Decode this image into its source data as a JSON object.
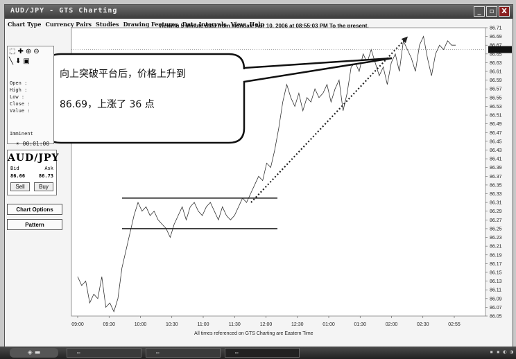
{
  "window": {
    "title": "AUD/JPY - GTS Charting",
    "controls": [
      "_",
      "▫",
      "X"
    ]
  },
  "menu": [
    "Chart Type",
    "Currency Pairs",
    "Studies",
    "Drawing Features",
    "Data Intervals",
    "View",
    "Help"
  ],
  "viewing_text": "Viewing 5 Minute  data from Monday, Apr 10, 2006 at 08:55:03 PM To the present.",
  "tools": {
    "icons": [
      "select-arrow-icon",
      "crosshair-icon",
      "zoom-in-icon",
      "zoom-out-icon",
      "line-icon",
      "arrow-down-icon",
      "box-icon",
      "layers-icon"
    ],
    "ohlc_labels": [
      "Open :",
      "High :",
      "Low  :",
      "Close :",
      "Value :"
    ],
    "imminent_label": "Imminent",
    "timer": "00:01:00"
  },
  "trade": {
    "pair": "AUD/JPY",
    "bid_label": "Bid",
    "ask_label": "Ask",
    "bid": "86.66",
    "ask": "86.73",
    "sell_label": "Sell",
    "buy_label": "Buy"
  },
  "buttons": {
    "chart_options": "Chart Options",
    "pattern": "Pattern"
  },
  "callout": {
    "line1": "向上突破平台后，价格上升到",
    "line2": "86.69，上涨了 36 点"
  },
  "footnote": "All times referenced on GTS Charting are Eastern Time",
  "chart_data": {
    "type": "line",
    "x_ticks": [
      "09:00",
      "09:30",
      "10:00",
      "10:30",
      "11:00",
      "11:30",
      "12:00",
      "12:30",
      "01:00",
      "01:30",
      "02:00",
      "02:30",
      "02:55"
    ],
    "y_ticks": [
      "86.71",
      "86.69",
      "86.67",
      "86.65",
      "86.63",
      "86.61",
      "86.59",
      "86.57",
      "86.55",
      "86.53",
      "86.51",
      "86.49",
      "86.47",
      "86.45",
      "86.43",
      "86.41",
      "86.39",
      "86.37",
      "86.35",
      "86.33",
      "86.31",
      "86.29",
      "86.27",
      "86.25",
      "86.23",
      "86.21",
      "86.19",
      "86.17",
      "86.15",
      "86.13",
      "86.11",
      "86.09",
      "86.07",
      "86.05"
    ],
    "ylim": [
      86.05,
      86.71
    ],
    "last_price": "86.66",
    "series": [
      {
        "values": [
          86.14,
          86.12,
          86.13,
          86.08,
          86.1,
          86.09,
          86.14,
          86.07,
          86.08,
          86.06,
          86.09,
          86.16,
          86.2,
          86.24,
          86.28,
          86.31,
          86.29,
          86.3,
          86.28,
          86.29,
          86.27,
          86.26,
          86.25,
          86.23,
          86.26,
          86.28,
          86.3,
          86.27,
          86.3,
          86.31,
          86.29,
          86.28,
          86.3,
          86.31,
          86.29,
          86.27,
          86.3,
          86.28,
          86.27,
          86.28,
          86.3,
          86.32,
          86.31,
          86.33,
          86.35,
          86.37,
          86.36,
          86.4,
          86.39,
          86.43,
          86.48,
          86.54,
          86.58,
          86.55,
          86.53,
          86.56,
          86.52,
          86.55,
          86.54,
          86.57,
          86.55,
          86.56,
          86.58,
          86.54,
          86.57,
          86.59,
          86.52,
          86.56,
          86.62,
          86.63,
          86.61,
          86.65,
          86.63,
          86.66,
          86.63,
          86.6,
          86.62,
          86.58,
          86.63,
          86.65,
          86.61,
          86.68,
          86.66,
          86.64,
          86.61,
          86.67,
          86.69,
          86.64,
          86.6,
          86.65,
          86.67,
          86.66,
          86.68,
          86.67,
          86.67
        ]
      }
    ],
    "platform": {
      "upper": 86.32,
      "lower": 86.25
    },
    "breakout_arrow": {
      "from_value": 86.31,
      "to_value": 86.69
    }
  }
}
